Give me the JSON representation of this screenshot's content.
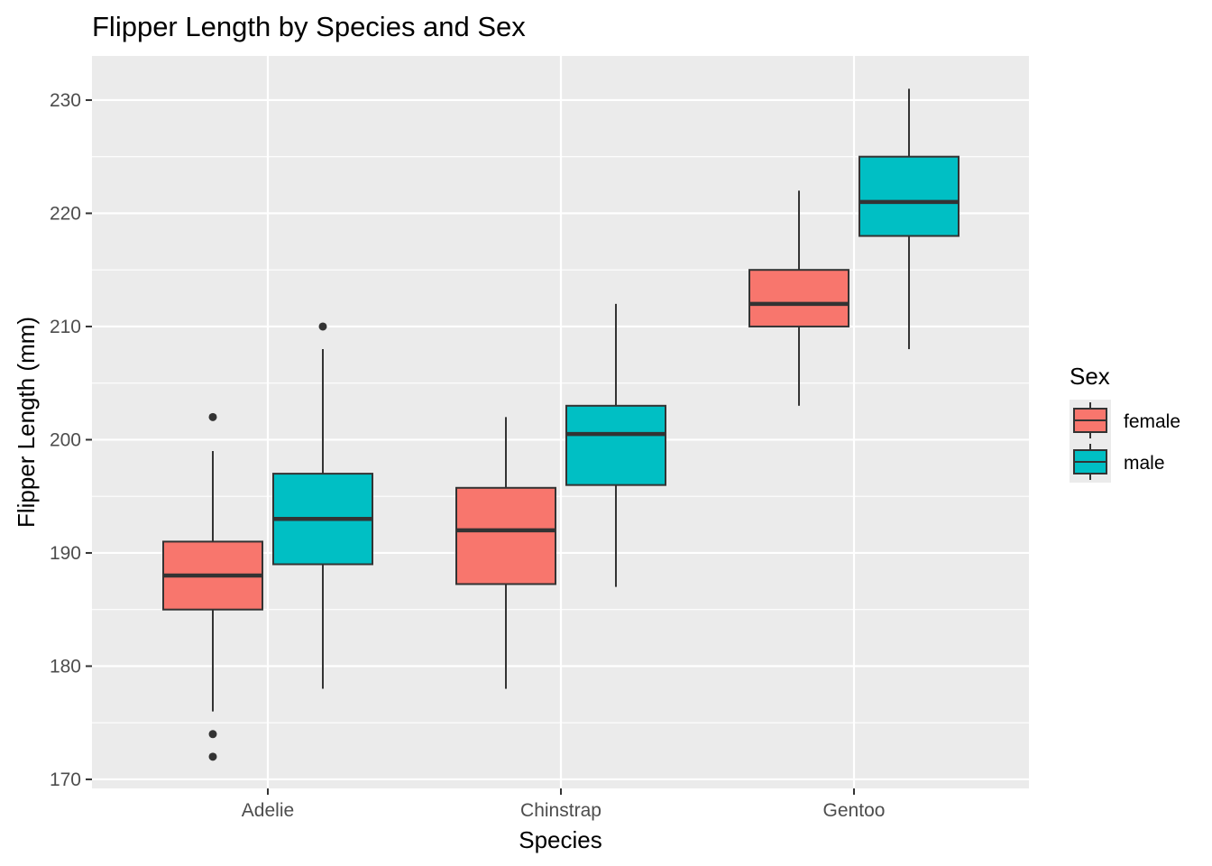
{
  "chart_data": {
    "type": "boxplot",
    "title": "Flipper Length by Species and Sex",
    "xlabel": "Species",
    "ylabel": "Flipper Length (mm)",
    "categories": [
      "Adelie",
      "Chinstrap",
      "Gentoo"
    ],
    "ylim": [
      169.2,
      233.9
    ],
    "yticks": [
      170,
      180,
      190,
      200,
      210,
      220,
      230
    ],
    "ytick_labels": [
      "170",
      "180",
      "190",
      "200",
      "210",
      "220",
      "230"
    ],
    "grid": true,
    "legend": {
      "title": "Sex",
      "placement": "right",
      "entries": [
        "female",
        "male"
      ]
    },
    "series": [
      {
        "name": "female",
        "color": "#F8766D",
        "boxes": [
          {
            "category": "Adelie",
            "whisker_low": 176,
            "q1": 185,
            "median": 188,
            "q3": 191,
            "whisker_high": 199,
            "outliers": [
              202,
              174,
              172
            ]
          },
          {
            "category": "Chinstrap",
            "whisker_low": 178,
            "q1": 187.25,
            "median": 192,
            "q3": 195.75,
            "whisker_high": 202,
            "outliers": []
          },
          {
            "category": "Gentoo",
            "whisker_low": 203,
            "q1": 210,
            "median": 212,
            "q3": 215,
            "whisker_high": 222,
            "outliers": []
          }
        ]
      },
      {
        "name": "male",
        "color": "#00BFC4",
        "boxes": [
          {
            "category": "Adelie",
            "whisker_low": 178,
            "q1": 189,
            "median": 193,
            "q3": 197,
            "whisker_high": 208,
            "outliers": [
              210
            ]
          },
          {
            "category": "Chinstrap",
            "whisker_low": 187,
            "q1": 196,
            "median": 200.5,
            "q3": 203,
            "whisker_high": 212,
            "outliers": []
          },
          {
            "category": "Gentoo",
            "whisker_low": 208,
            "q1": 218,
            "median": 221,
            "q3": 225,
            "whisker_high": 231,
            "outliers": []
          }
        ]
      }
    ],
    "colors": {
      "panel_background": "#EBEBEB",
      "grid_major": "#FFFFFF",
      "box_outline": "#333333",
      "tick_text": "#4D4D4D"
    }
  }
}
